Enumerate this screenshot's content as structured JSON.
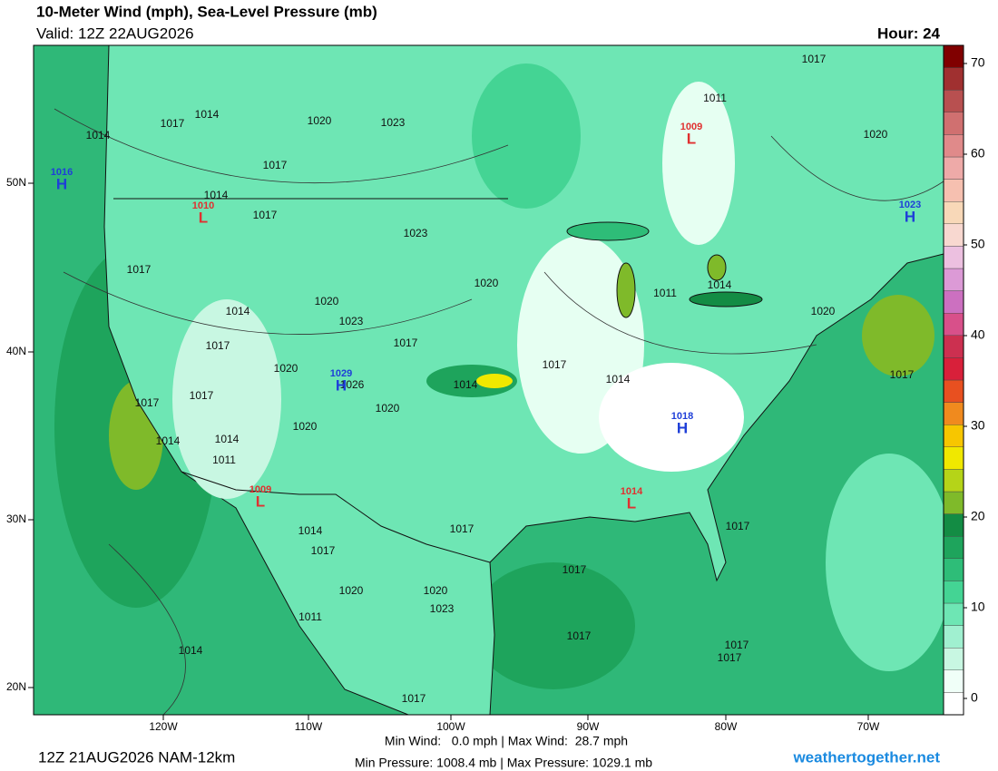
{
  "header": {
    "title": "10-Meter Wind (mph), Sea-Level Pressure (mb)",
    "valid": "Valid: 12Z 22AUG2026",
    "hour": "Hour: 24"
  },
  "lat_labels": [
    "50N",
    "40N",
    "30N",
    "20N"
  ],
  "lon_labels": [
    "120W",
    "110W",
    "100W",
    "90W",
    "80W",
    "70W"
  ],
  "isobars": [
    "1017",
    "1011",
    "1020",
    "1017",
    "1014",
    "1014",
    "1020",
    "1023",
    "1017",
    "1014",
    "1017",
    "1023",
    "1017",
    "1020",
    "1011",
    "1014",
    "1020",
    "1020",
    "1014",
    "1023",
    "1017",
    "1017",
    "1020",
    "1026",
    "1017",
    "1014",
    "1014",
    "1017",
    "1017",
    "1017",
    "1020",
    "1020",
    "1014",
    "1014",
    "1011",
    "1017",
    "1014",
    "1017",
    "1017",
    "1017",
    "1020",
    "1020",
    "1023",
    "1011",
    "1017",
    "1014",
    "1017",
    "1017",
    "1017"
  ],
  "centers": [
    {
      "letter": "H",
      "pressure": "1016"
    },
    {
      "letter": "H",
      "pressure": "1023"
    },
    {
      "letter": "H",
      "pressure": "1029"
    },
    {
      "letter": "H",
      "pressure": "1018"
    },
    {
      "letter": "L",
      "pressure": "1009"
    },
    {
      "letter": "L",
      "pressure": "1010"
    },
    {
      "letter": "L",
      "pressure": "1009"
    },
    {
      "letter": "L",
      "pressure": "1014"
    }
  ],
  "center_colors": {
    "H": "#1f3fd8",
    "L": "#e03030"
  },
  "colorbar": {
    "lim": [
      -1.8,
      72
    ],
    "ticks": [
      0,
      10,
      20,
      30,
      40,
      50,
      60,
      70
    ],
    "colors": [
      "#ffffff",
      "#f0fff8",
      "#c8f7e2",
      "#a0f0d0",
      "#6ee6b4",
      "#44d494",
      "#2ebd78",
      "#1ea45c",
      "#138c44",
      "#7fba2a",
      "#b5d418",
      "#f0e800",
      "#f7c600",
      "#f08a1e",
      "#e85020",
      "#d8203a",
      "#cc3050",
      "#d8508a",
      "#cc70c0",
      "#dc9ad6",
      "#ecc0e0",
      "#f8d8d0",
      "#f8d8b8",
      "#f6c0b0",
      "#eeaaa8",
      "#e08a8a",
      "#d07070",
      "#b85050",
      "#a03030",
      "#800000"
    ]
  },
  "footer": {
    "run": "12Z 21AUG2026 NAM-12km",
    "wind": "Min Wind:   0.0 mph | Max Wind:  28.7 mph",
    "pressure": "Min Pressure: 1008.4 mb | Max Pressure: 1029.1 mb",
    "site": "weathertogether.net"
  }
}
